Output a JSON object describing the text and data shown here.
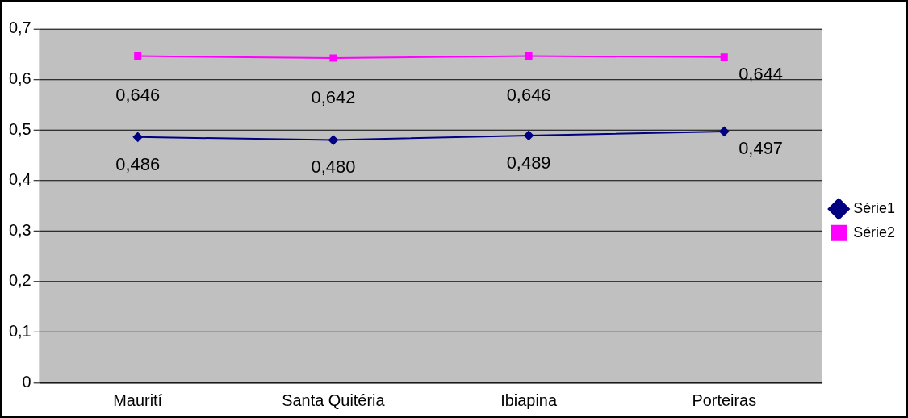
{
  "chart_data": {
    "type": "line",
    "categories": [
      "Maurití",
      "Santa Quitéria",
      "Ibiapina",
      "Porteiras"
    ],
    "series": [
      {
        "name": "Série1",
        "color": "#000080",
        "marker": "diamond",
        "values": [
          0.486,
          0.48,
          0.489,
          0.497
        ],
        "value_labels": [
          "0,486",
          "0,480",
          "0,489",
          "0,497"
        ]
      },
      {
        "name": "Série2",
        "color": "#ff00ff",
        "marker": "square",
        "values": [
          0.646,
          0.642,
          0.646,
          0.644
        ],
        "value_labels": [
          "0,646",
          "0,642",
          "0,646",
          "0,644"
        ]
      }
    ],
    "ylim": [
      0,
      0.7
    ],
    "yticks": [
      {
        "value": 0,
        "label": "0"
      },
      {
        "value": 0.1,
        "label": "0,1"
      },
      {
        "value": 0.2,
        "label": "0,2"
      },
      {
        "value": 0.3,
        "label": "0,3"
      },
      {
        "value": 0.4,
        "label": "0,4"
      },
      {
        "value": 0.5,
        "label": "0,5"
      },
      {
        "value": 0.6,
        "label": "0,6"
      },
      {
        "value": 0.7,
        "label": "0,7"
      }
    ],
    "grid": "y",
    "legend": "right"
  }
}
